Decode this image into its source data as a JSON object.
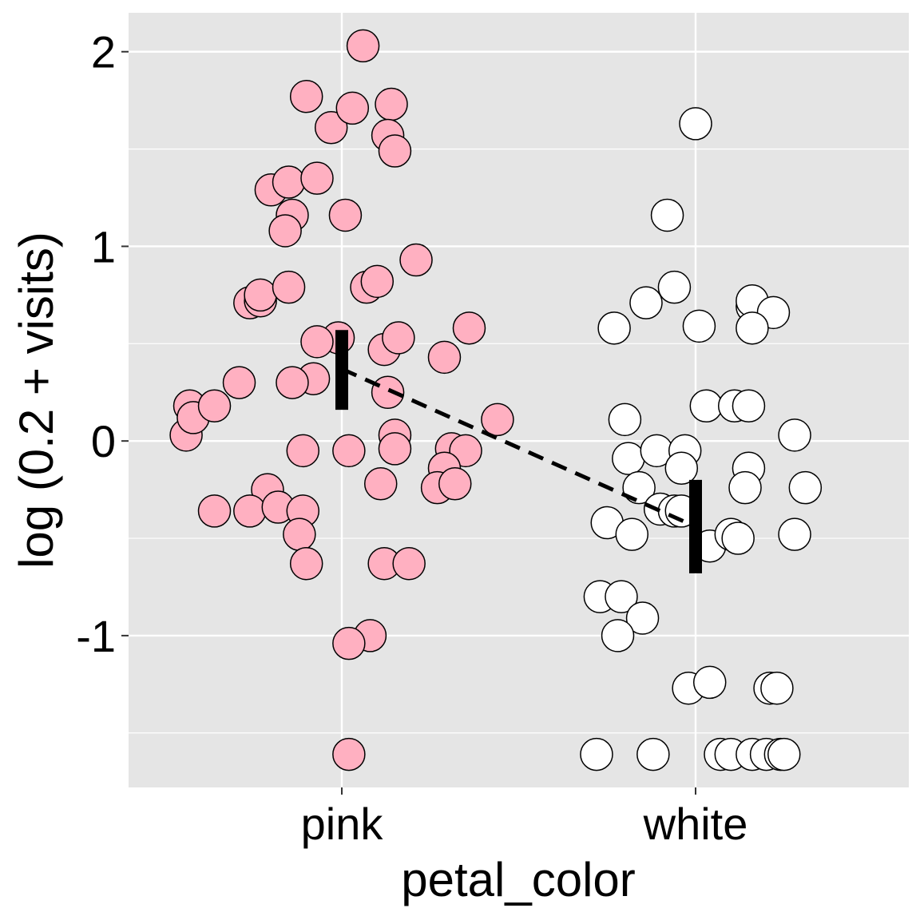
{
  "chart_data": {
    "type": "scatter",
    "xlabel": "petal_color",
    "ylabel": "log (0.2 + visits)",
    "categories": [
      "pink",
      "white"
    ],
    "ylim": [
      -1.78,
      2.2
    ],
    "yticks": [
      -1,
      0,
      1,
      2
    ],
    "ytick_labels": [
      "-1",
      "0",
      "1",
      "2"
    ],
    "grid": true,
    "background": "#e5e5e5",
    "grid_color": "#ffffff",
    "point_colors": {
      "pink": "#ffb0c1",
      "white": "#ffffff"
    },
    "point_edge_color": "#000000",
    "series": [
      {
        "category": "pink",
        "points": [
          {
            "x": -0.43,
            "y": 0.18
          },
          {
            "x": -0.44,
            "y": 0.03
          },
          {
            "x": -0.42,
            "y": 0.12
          },
          {
            "x": -0.36,
            "y": 0.18
          },
          {
            "x": -0.29,
            "y": 0.3
          },
          {
            "x": -0.36,
            "y": -0.36
          },
          {
            "x": -0.26,
            "y": 0.71
          },
          {
            "x": -0.23,
            "y": 0.72
          },
          {
            "x": -0.23,
            "y": 0.75
          },
          {
            "x": -0.2,
            "y": 1.29
          },
          {
            "x": -0.15,
            "y": 1.33
          },
          {
            "x": -0.14,
            "y": 1.16
          },
          {
            "x": -0.16,
            "y": 1.08
          },
          {
            "x": -0.15,
            "y": 0.79
          },
          {
            "x": -0.07,
            "y": 1.35
          },
          {
            "x": -0.1,
            "y": 1.77
          },
          {
            "x": -0.03,
            "y": 1.61
          },
          {
            "x": 0.03,
            "y": 1.71
          },
          {
            "x": 0.06,
            "y": 2.03
          },
          {
            "x": 0.14,
            "y": 1.73
          },
          {
            "x": 0.13,
            "y": 1.57
          },
          {
            "x": 0.15,
            "y": 1.49
          },
          {
            "x": 0.01,
            "y": 1.16
          },
          {
            "x": 0.21,
            "y": 0.93
          },
          {
            "x": 0.07,
            "y": 0.79
          },
          {
            "x": 0.1,
            "y": 0.82
          },
          {
            "x": -0.01,
            "y": 0.53
          },
          {
            "x": -0.07,
            "y": 0.51
          },
          {
            "x": -0.08,
            "y": 0.32
          },
          {
            "x": -0.14,
            "y": 0.3
          },
          {
            "x": 0.12,
            "y": 0.47
          },
          {
            "x": 0.16,
            "y": 0.53
          },
          {
            "x": 0.13,
            "y": 0.25
          },
          {
            "x": 0.29,
            "y": 0.43
          },
          {
            "x": 0.36,
            "y": 0.58
          },
          {
            "x": 0.44,
            "y": 0.11
          },
          {
            "x": 0.15,
            "y": 0.03
          },
          {
            "x": 0.15,
            "y": -0.04
          },
          {
            "x": -0.11,
            "y": -0.05
          },
          {
            "x": 0.02,
            "y": -0.05
          },
          {
            "x": 0.11,
            "y": -0.22
          },
          {
            "x": 0.31,
            "y": -0.04
          },
          {
            "x": 0.35,
            "y": -0.05
          },
          {
            "x": 0.29,
            "y": -0.14
          },
          {
            "x": 0.27,
            "y": -0.24
          },
          {
            "x": 0.32,
            "y": -0.22
          },
          {
            "x": -0.21,
            "y": -0.25
          },
          {
            "x": -0.26,
            "y": -0.36
          },
          {
            "x": -0.18,
            "y": -0.34
          },
          {
            "x": -0.11,
            "y": -0.36
          },
          {
            "x": -0.12,
            "y": -0.48
          },
          {
            "x": -0.1,
            "y": -0.63
          },
          {
            "x": 0.12,
            "y": -0.63
          },
          {
            "x": 0.19,
            "y": -0.63
          },
          {
            "x": 0.08,
            "y": -1.0
          },
          {
            "x": 0.02,
            "y": -1.04
          },
          {
            "x": 0.02,
            "y": -1.61
          }
        ]
      },
      {
        "category": "white",
        "points": [
          {
            "x": 0.0,
            "y": 1.63
          },
          {
            "x": -0.08,
            "y": 1.16
          },
          {
            "x": -0.06,
            "y": 0.79
          },
          {
            "x": -0.14,
            "y": 0.71
          },
          {
            "x": -0.23,
            "y": 0.58
          },
          {
            "x": 0.01,
            "y": 0.59
          },
          {
            "x": 0.16,
            "y": 0.69
          },
          {
            "x": 0.16,
            "y": 0.72
          },
          {
            "x": 0.22,
            "y": 0.66
          },
          {
            "x": 0.16,
            "y": 0.58
          },
          {
            "x": -0.2,
            "y": 0.11
          },
          {
            "x": 0.03,
            "y": 0.18
          },
          {
            "x": 0.11,
            "y": 0.18
          },
          {
            "x": 0.15,
            "y": 0.18
          },
          {
            "x": 0.28,
            "y": 0.03
          },
          {
            "x": -0.19,
            "y": -0.09
          },
          {
            "x": -0.11,
            "y": -0.05
          },
          {
            "x": -0.03,
            "y": -0.05
          },
          {
            "x": -0.04,
            "y": -0.14
          },
          {
            "x": 0.15,
            "y": -0.14
          },
          {
            "x": 0.14,
            "y": -0.24
          },
          {
            "x": -0.16,
            "y": -0.24
          },
          {
            "x": 0.31,
            "y": -0.24
          },
          {
            "x": -0.1,
            "y": -0.35
          },
          {
            "x": -0.06,
            "y": -0.36
          },
          {
            "x": -0.04,
            "y": -0.36
          },
          {
            "x": -0.25,
            "y": -0.42
          },
          {
            "x": -0.18,
            "y": -0.48
          },
          {
            "x": 0.04,
            "y": -0.54
          },
          {
            "x": 0.1,
            "y": -0.48
          },
          {
            "x": 0.12,
            "y": -0.5
          },
          {
            "x": 0.28,
            "y": -0.48
          },
          {
            "x": -0.27,
            "y": -0.8
          },
          {
            "x": -0.21,
            "y": -0.8
          },
          {
            "x": -0.15,
            "y": -0.91
          },
          {
            "x": -0.22,
            "y": -1.0
          },
          {
            "x": -0.02,
            "y": -1.27
          },
          {
            "x": 0.04,
            "y": -1.24
          },
          {
            "x": 0.21,
            "y": -1.27
          },
          {
            "x": 0.23,
            "y": -1.27
          },
          {
            "x": -0.28,
            "y": -1.61
          },
          {
            "x": -0.12,
            "y": -1.61
          },
          {
            "x": 0.07,
            "y": -1.61
          },
          {
            "x": 0.1,
            "y": -1.61
          },
          {
            "x": 0.16,
            "y": -1.61
          },
          {
            "x": 0.2,
            "y": -1.61
          },
          {
            "x": 0.24,
            "y": -1.61
          },
          {
            "x": 0.25,
            "y": -1.61
          }
        ]
      }
    ],
    "summary": [
      {
        "category": "pink",
        "mean": 0.37,
        "low": 0.16,
        "high": 0.57
      },
      {
        "category": "white",
        "mean": -0.44,
        "low": -0.68,
        "high": -0.2
      }
    ]
  }
}
